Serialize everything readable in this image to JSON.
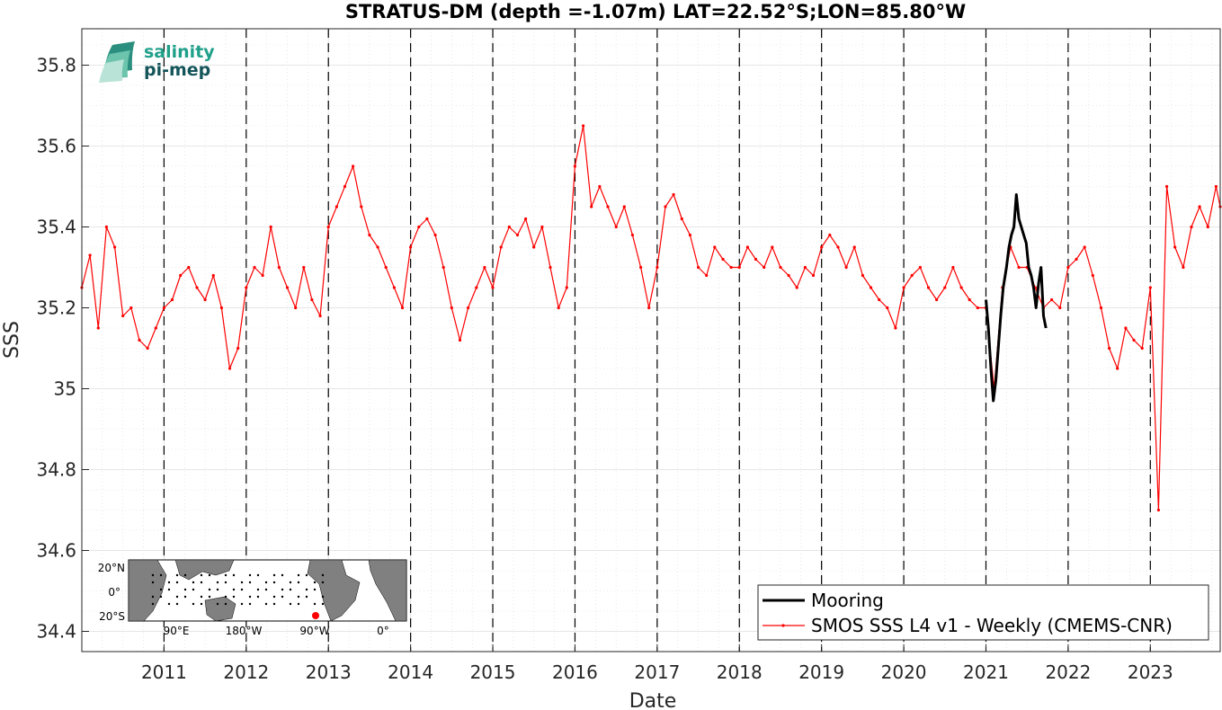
{
  "chart_data": {
    "type": "line",
    "title": "STRATUS-DM (depth =-1.07m) LAT=22.52°S;LON=85.80°W",
    "xlabel": "Date",
    "ylabel": "SSS",
    "xlim": [
      2010.0,
      2023.85
    ],
    "ylim": [
      34.35,
      35.89
    ],
    "x_ticks": [
      {
        "value": 2011,
        "label": "2011"
      },
      {
        "value": 2012,
        "label": "2012"
      },
      {
        "value": 2013,
        "label": "2013"
      },
      {
        "value": 2014,
        "label": "2014"
      },
      {
        "value": 2015,
        "label": "2015"
      },
      {
        "value": 2016,
        "label": "2016"
      },
      {
        "value": 2017,
        "label": "2017"
      },
      {
        "value": 2018,
        "label": "2018"
      },
      {
        "value": 2019,
        "label": "2019"
      },
      {
        "value": 2020,
        "label": "2020"
      },
      {
        "value": 2021,
        "label": "2021"
      },
      {
        "value": 2022,
        "label": "2022"
      },
      {
        "value": 2023,
        "label": "2023"
      }
    ],
    "y_ticks": [
      {
        "value": 34.4,
        "label": "34.4"
      },
      {
        "value": 34.6,
        "label": "34.6"
      },
      {
        "value": 34.8,
        "label": "34.8"
      },
      {
        "value": 35.0,
        "label": "35"
      },
      {
        "value": 35.2,
        "label": "35.2"
      },
      {
        "value": 35.4,
        "label": "35.4"
      },
      {
        "value": 35.6,
        "label": "35.6"
      },
      {
        "value": 35.8,
        "label": "35.8"
      }
    ],
    "grid": true,
    "year_marker_lines": [
      2011,
      2012,
      2013,
      2014,
      2015,
      2016,
      2017,
      2018,
      2019,
      2020,
      2021,
      2022,
      2023
    ],
    "legend_position": "bottom-right",
    "series": [
      {
        "name": "Mooring",
        "color": "#000000",
        "x": [
          2021.0,
          2021.03,
          2021.06,
          2021.09,
          2021.12,
          2021.15,
          2021.18,
          2021.21,
          2021.25,
          2021.28,
          2021.31,
          2021.34,
          2021.37,
          2021.4,
          2021.43,
          2021.46,
          2021.49,
          2021.52,
          2021.55,
          2021.58,
          2021.61,
          2021.64,
          2021.67,
          2021.7,
          2021.73
        ],
        "y": [
          35.22,
          35.15,
          35.05,
          34.97,
          35.02,
          35.1,
          35.18,
          35.25,
          35.3,
          35.35,
          35.38,
          35.4,
          35.48,
          35.42,
          35.4,
          35.38,
          35.36,
          35.3,
          35.28,
          35.25,
          35.2,
          35.26,
          35.3,
          35.18,
          35.15
        ]
      },
      {
        "name": "SMOS SSS L4 v1 - Weekly (CMEMS-CNR)",
        "color": "#ff0000",
        "x": [
          2010.0,
          2010.1,
          2010.2,
          2010.3,
          2010.4,
          2010.5,
          2010.6,
          2010.7,
          2010.8,
          2010.9,
          2011.0,
          2011.1,
          2011.2,
          2011.3,
          2011.4,
          2011.5,
          2011.6,
          2011.7,
          2011.8,
          2011.9,
          2012.0,
          2012.1,
          2012.2,
          2012.3,
          2012.4,
          2012.5,
          2012.6,
          2012.7,
          2012.8,
          2012.9,
          2013.0,
          2013.1,
          2013.2,
          2013.3,
          2013.4,
          2013.5,
          2013.6,
          2013.7,
          2013.8,
          2013.9,
          2014.0,
          2014.1,
          2014.2,
          2014.3,
          2014.4,
          2014.5,
          2014.6,
          2014.7,
          2014.8,
          2014.9,
          2015.0,
          2015.1,
          2015.2,
          2015.3,
          2015.4,
          2015.5,
          2015.6,
          2015.7,
          2015.8,
          2015.9,
          2016.0,
          2016.1,
          2016.2,
          2016.3,
          2016.4,
          2016.5,
          2016.6,
          2016.7,
          2016.8,
          2016.9,
          2017.0,
          2017.1,
          2017.2,
          2017.3,
          2017.4,
          2017.5,
          2017.6,
          2017.7,
          2017.8,
          2017.9,
          2018.0,
          2018.1,
          2018.2,
          2018.3,
          2018.4,
          2018.5,
          2018.6,
          2018.7,
          2018.8,
          2018.9,
          2019.0,
          2019.1,
          2019.2,
          2019.3,
          2019.4,
          2019.5,
          2019.6,
          2019.7,
          2019.8,
          2019.9,
          2020.0,
          2020.1,
          2020.2,
          2020.3,
          2020.4,
          2020.5,
          2020.6,
          2020.7,
          2020.8,
          2020.9,
          2021.0,
          2021.1,
          2021.2,
          2021.3,
          2021.4,
          2021.5,
          2021.6,
          2021.7,
          2021.8,
          2021.9,
          2022.0,
          2022.1,
          2022.2,
          2022.3,
          2022.4,
          2022.5,
          2022.6,
          2022.7,
          2022.8,
          2022.9,
          2023.0,
          2023.1,
          2023.2,
          2023.3,
          2023.4,
          2023.5,
          2023.6,
          2023.7,
          2023.8,
          2023.85
        ],
        "y": [
          35.25,
          35.33,
          35.15,
          35.4,
          35.35,
          35.18,
          35.2,
          35.12,
          35.1,
          35.15,
          35.2,
          35.22,
          35.28,
          35.3,
          35.25,
          35.22,
          35.28,
          35.2,
          35.05,
          35.1,
          35.25,
          35.3,
          35.28,
          35.4,
          35.3,
          35.25,
          35.2,
          35.3,
          35.22,
          35.18,
          35.4,
          35.45,
          35.5,
          35.55,
          35.45,
          35.38,
          35.35,
          35.3,
          35.25,
          35.2,
          35.35,
          35.4,
          35.42,
          35.38,
          35.3,
          35.2,
          35.12,
          35.2,
          35.25,
          35.3,
          35.25,
          35.35,
          35.4,
          35.38,
          35.42,
          35.35,
          35.4,
          35.3,
          35.2,
          35.25,
          35.55,
          35.65,
          35.45,
          35.5,
          35.45,
          35.4,
          35.45,
          35.38,
          35.3,
          35.2,
          35.3,
          35.45,
          35.48,
          35.42,
          35.38,
          35.3,
          35.28,
          35.35,
          35.32,
          35.3,
          35.3,
          35.35,
          35.32,
          35.3,
          35.35,
          35.3,
          35.28,
          35.25,
          35.3,
          35.28,
          35.35,
          35.38,
          35.35,
          35.3,
          35.35,
          35.28,
          35.25,
          35.22,
          35.2,
          35.15,
          35.25,
          35.28,
          35.3,
          35.25,
          35.22,
          35.25,
          35.3,
          35.25,
          35.22,
          35.2,
          35.2,
          35.0,
          35.25,
          35.35,
          35.3,
          35.3,
          35.25,
          35.2,
          35.22,
          35.2,
          35.3,
          35.32,
          35.35,
          35.28,
          35.2,
          35.1,
          35.05,
          35.15,
          35.12,
          35.1,
          35.25,
          34.7,
          35.5,
          35.35,
          35.3,
          35.4,
          35.45,
          35.4,
          35.5,
          35.45
        ]
      }
    ],
    "inset_map": {
      "lat_labels": [
        "20°N",
        "0°",
        "20°S"
      ],
      "lon_labels": [
        "90°E",
        "180°W",
        "90°W",
        "0°"
      ]
    },
    "logo": {
      "line1": "salinity",
      "line2": "pi-mep"
    }
  }
}
